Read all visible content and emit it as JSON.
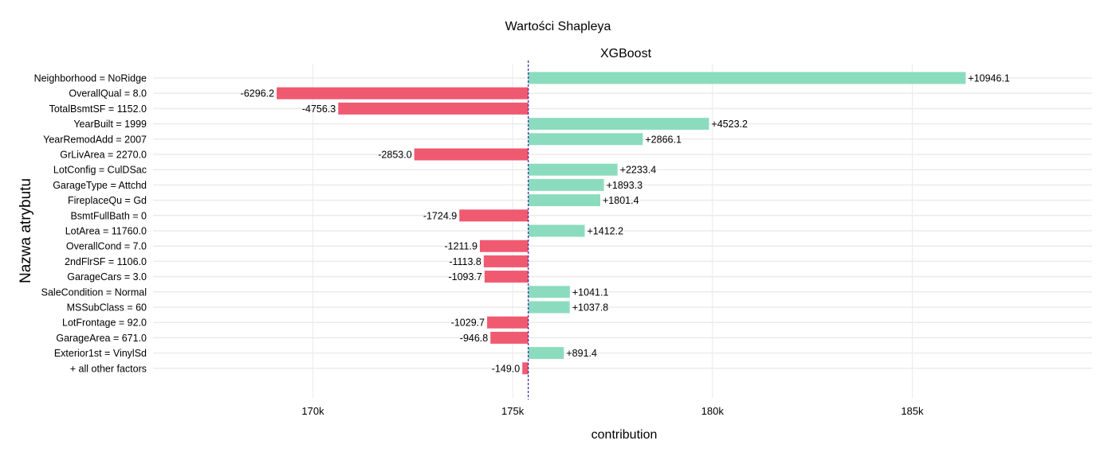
{
  "chart_data": {
    "type": "bar",
    "orientation": "horizontal",
    "title": "Wartości Shapleya",
    "subtitle": "XGBoost",
    "xlabel": "contribution",
    "ylabel": "Nazwa atrybutu",
    "baseline": 175390,
    "xlim": [
      166000,
      189500
    ],
    "xticks": [
      170000,
      175000,
      180000,
      185000
    ],
    "xtick_labels": [
      "170k",
      "175k",
      "180k",
      "185k"
    ],
    "grid": true,
    "colors": {
      "positive": "#8bdcbe",
      "negative": "#f05a71",
      "baseline": "#371ea3",
      "grid": "#ebebeb"
    },
    "bars": [
      {
        "label": "Neighborhood = NoRidge",
        "value": 10946.1,
        "value_label": "+10946.1"
      },
      {
        "label": "OverallQual = 8.0",
        "value": -6296.2,
        "value_label": "-6296.2"
      },
      {
        "label": "TotalBsmtSF = 1152.0",
        "value": -4756.3,
        "value_label": "-4756.3"
      },
      {
        "label": "YearBuilt = 1999",
        "value": 4523.2,
        "value_label": "+4523.2"
      },
      {
        "label": "YearRemodAdd = 2007",
        "value": 2866.1,
        "value_label": "+2866.1"
      },
      {
        "label": "GrLivArea = 2270.0",
        "value": -2853.0,
        "value_label": "-2853.0"
      },
      {
        "label": "LotConfig = CulDSac",
        "value": 2233.4,
        "value_label": "+2233.4"
      },
      {
        "label": "GarageType = Attchd",
        "value": 1893.3,
        "value_label": "+1893.3"
      },
      {
        "label": "FireplaceQu = Gd",
        "value": 1801.4,
        "value_label": "+1801.4"
      },
      {
        "label": "BsmtFullBath = 0",
        "value": -1724.9,
        "value_label": "-1724.9"
      },
      {
        "label": "LotArea = 11760.0",
        "value": 1412.2,
        "value_label": "+1412.2"
      },
      {
        "label": "OverallCond = 7.0",
        "value": -1211.9,
        "value_label": "-1211.9"
      },
      {
        "label": "2ndFlrSF = 1106.0",
        "value": -1113.8,
        "value_label": "-1113.8"
      },
      {
        "label": "GarageCars = 3.0",
        "value": -1093.7,
        "value_label": "-1093.7"
      },
      {
        "label": "SaleCondition = Normal",
        "value": 1041.1,
        "value_label": "+1041.1"
      },
      {
        "label": "MSSubClass = 60",
        "value": 1037.8,
        "value_label": "+1037.8"
      },
      {
        "label": "LotFrontage = 92.0",
        "value": -1029.7,
        "value_label": "-1029.7"
      },
      {
        "label": "GarageArea = 671.0",
        "value": -946.8,
        "value_label": "-946.8"
      },
      {
        "label": "Exterior1st = VinylSd",
        "value": 891.4,
        "value_label": "+891.4"
      },
      {
        "label": "+ all other factors",
        "value": -149.0,
        "value_label": "-149.0"
      }
    ]
  }
}
